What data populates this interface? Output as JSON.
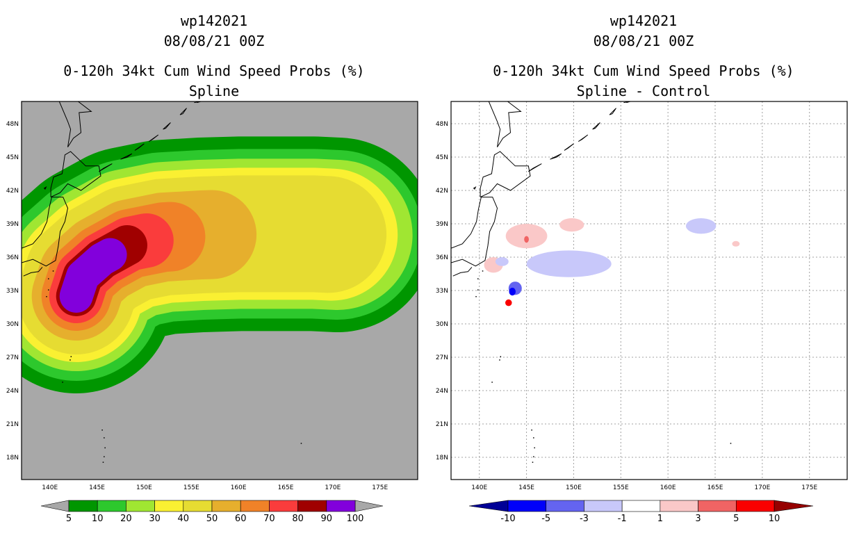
{
  "chart_data": [
    {
      "type": "heatmap",
      "storm_id": "wp142021",
      "date": "08/08/21 00Z",
      "title": "0-120h 34kt Cum Wind Speed Probs (%)",
      "subtitle": "Spline",
      "background_color": "#a8a8a8",
      "lon_range": [
        137,
        179
      ],
      "lat_range": [
        16,
        50
      ],
      "x_ticks": [
        "140E",
        "145E",
        "150E",
        "155E",
        "160E",
        "165E",
        "170E",
        "175E"
      ],
      "y_ticks": [
        "48N",
        "45N",
        "42N",
        "39N",
        "36N",
        "33N",
        "30N",
        "27N",
        "24N",
        "21N",
        "18N"
      ],
      "grid": false,
      "track": [
        [
          142.8,
          32.5
        ],
        [
          143.5,
          34.3
        ],
        [
          145.5,
          35.8
        ],
        [
          148.5,
          37.2
        ],
        [
          152,
          37.8
        ],
        [
          156,
          38
        ],
        [
          160,
          38.1
        ],
        [
          164,
          38.1
        ],
        [
          168,
          38.1
        ],
        [
          170.5,
          38
        ]
      ],
      "layers": [
        {
          "level": 5,
          "color": "#009600",
          "width": 280,
          "start": 0,
          "end": 9
        },
        {
          "level": 10,
          "color": "#2dc82d",
          "width": 244,
          "start": 0,
          "end": 9
        },
        {
          "level": 20,
          "color": "#a0e632",
          "width": 216,
          "start": 0,
          "end": 9
        },
        {
          "level": 30,
          "color": "#faf032",
          "width": 190,
          "start": 0,
          "end": 8.75
        },
        {
          "level": 40,
          "color": "#e6dc32",
          "width": 168,
          "start": 0,
          "end": 8.6
        },
        {
          "level": 50,
          "color": "#e6af2d",
          "width": 128,
          "start": 0,
          "end": 5.3
        },
        {
          "level": 60,
          "color": "#f08228",
          "width": 100,
          "start": 0,
          "end": 4.2
        },
        {
          "level": 70,
          "color": "#fa3c3c",
          "width": 78,
          "start": 0,
          "end": 3.5
        },
        {
          "level": 80,
          "color": "#a00000",
          "width": 58,
          "start": 0,
          "end": 2.9
        },
        {
          "level": 90,
          "color": "#8200dc",
          "width": 48,
          "start": 0,
          "end": 2.3
        }
      ],
      "colorbar": {
        "labels": [
          "5",
          "10",
          "20",
          "30",
          "40",
          "50",
          "60",
          "70",
          "80",
          "90",
          "100"
        ],
        "colors": [
          "#009600",
          "#2dc82d",
          "#a0e632",
          "#faf032",
          "#e6dc32",
          "#e6af2d",
          "#f08228",
          "#fa3c3c",
          "#a00000",
          "#8200dc"
        ],
        "under_color": "#a8a8a8",
        "over_color": "#a8a8a8"
      }
    },
    {
      "type": "heatmap",
      "storm_id": "wp142021",
      "date": "08/08/21 00Z",
      "title": "0-120h 34kt Cum Wind Speed Probs (%)",
      "subtitle": "Spline - Control",
      "background_color": "#ffffff",
      "lon_range": [
        137,
        179
      ],
      "lat_range": [
        16,
        50
      ],
      "x_ticks": [
        "140E",
        "145E",
        "150E",
        "155E",
        "160E",
        "165E",
        "170E",
        "175E"
      ],
      "y_ticks": [
        "48N",
        "45N",
        "42N",
        "39N",
        "36N",
        "33N",
        "30N",
        "27N",
        "24N",
        "21N",
        "18N"
      ],
      "grid": true,
      "difference_regions": [
        {
          "range": "1 to 3",
          "color": "#fac8c8",
          "lon": 145,
          "lat": 37.9,
          "rlon": 2.2,
          "rlat": 1.1
        },
        {
          "range": "1 to 3",
          "color": "#fac8c8",
          "lon": 149.8,
          "lat": 38.9,
          "rlon": 1.3,
          "rlat": 0.6
        },
        {
          "range": "1 to 3",
          "color": "#fac8c8",
          "lon": 141.5,
          "lat": 35.3,
          "rlon": 1.0,
          "rlat": 0.7
        },
        {
          "range": "1 to 3",
          "color": "#fac8c8",
          "lon": 167.2,
          "lat": 37.2,
          "rlon": 0.4,
          "rlat": 0.25
        },
        {
          "range": "3 to 5",
          "color": "#f06464",
          "lon": 145,
          "lat": 37.6,
          "rlon": 0.25,
          "rlat": 0.3
        },
        {
          "range": "5 to 10",
          "color": "#fa0000",
          "lon": 143.1,
          "lat": 31.9,
          "rlon": 0.35,
          "rlat": 0.3
        },
        {
          "range": "-3 to -1",
          "color": "#c8c8fa",
          "lon": 149.5,
          "lat": 35.4,
          "rlon": 4.5,
          "rlat": 1.2
        },
        {
          "range": "-3 to -1",
          "color": "#c8c8fa",
          "lon": 163.5,
          "lat": 38.8,
          "rlon": 1.6,
          "rlat": 0.7
        },
        {
          "range": "-3 to -1",
          "color": "#c8c8fa",
          "lon": 142.4,
          "lat": 35.6,
          "rlon": 0.7,
          "rlat": 0.4
        },
        {
          "range": "-5 to -3",
          "color": "#6464f0",
          "lon": 143.8,
          "lat": 33.2,
          "rlon": 0.7,
          "rlat": 0.6
        },
        {
          "range": "-10 to -5",
          "color": "#0000fa",
          "lon": 143.5,
          "lat": 32.9,
          "rlon": 0.35,
          "rlat": 0.35
        }
      ],
      "colorbar": {
        "labels": [
          "-10",
          "-5",
          "-3",
          "-1",
          "1",
          "3",
          "5",
          "10"
        ],
        "colors": [
          "#0000fa",
          "#6464f0",
          "#c8c8fa",
          "#ffffff",
          "#fac8c8",
          "#f06464",
          "#fa0000"
        ],
        "under_color": "#000096",
        "over_color": "#960000"
      }
    }
  ]
}
